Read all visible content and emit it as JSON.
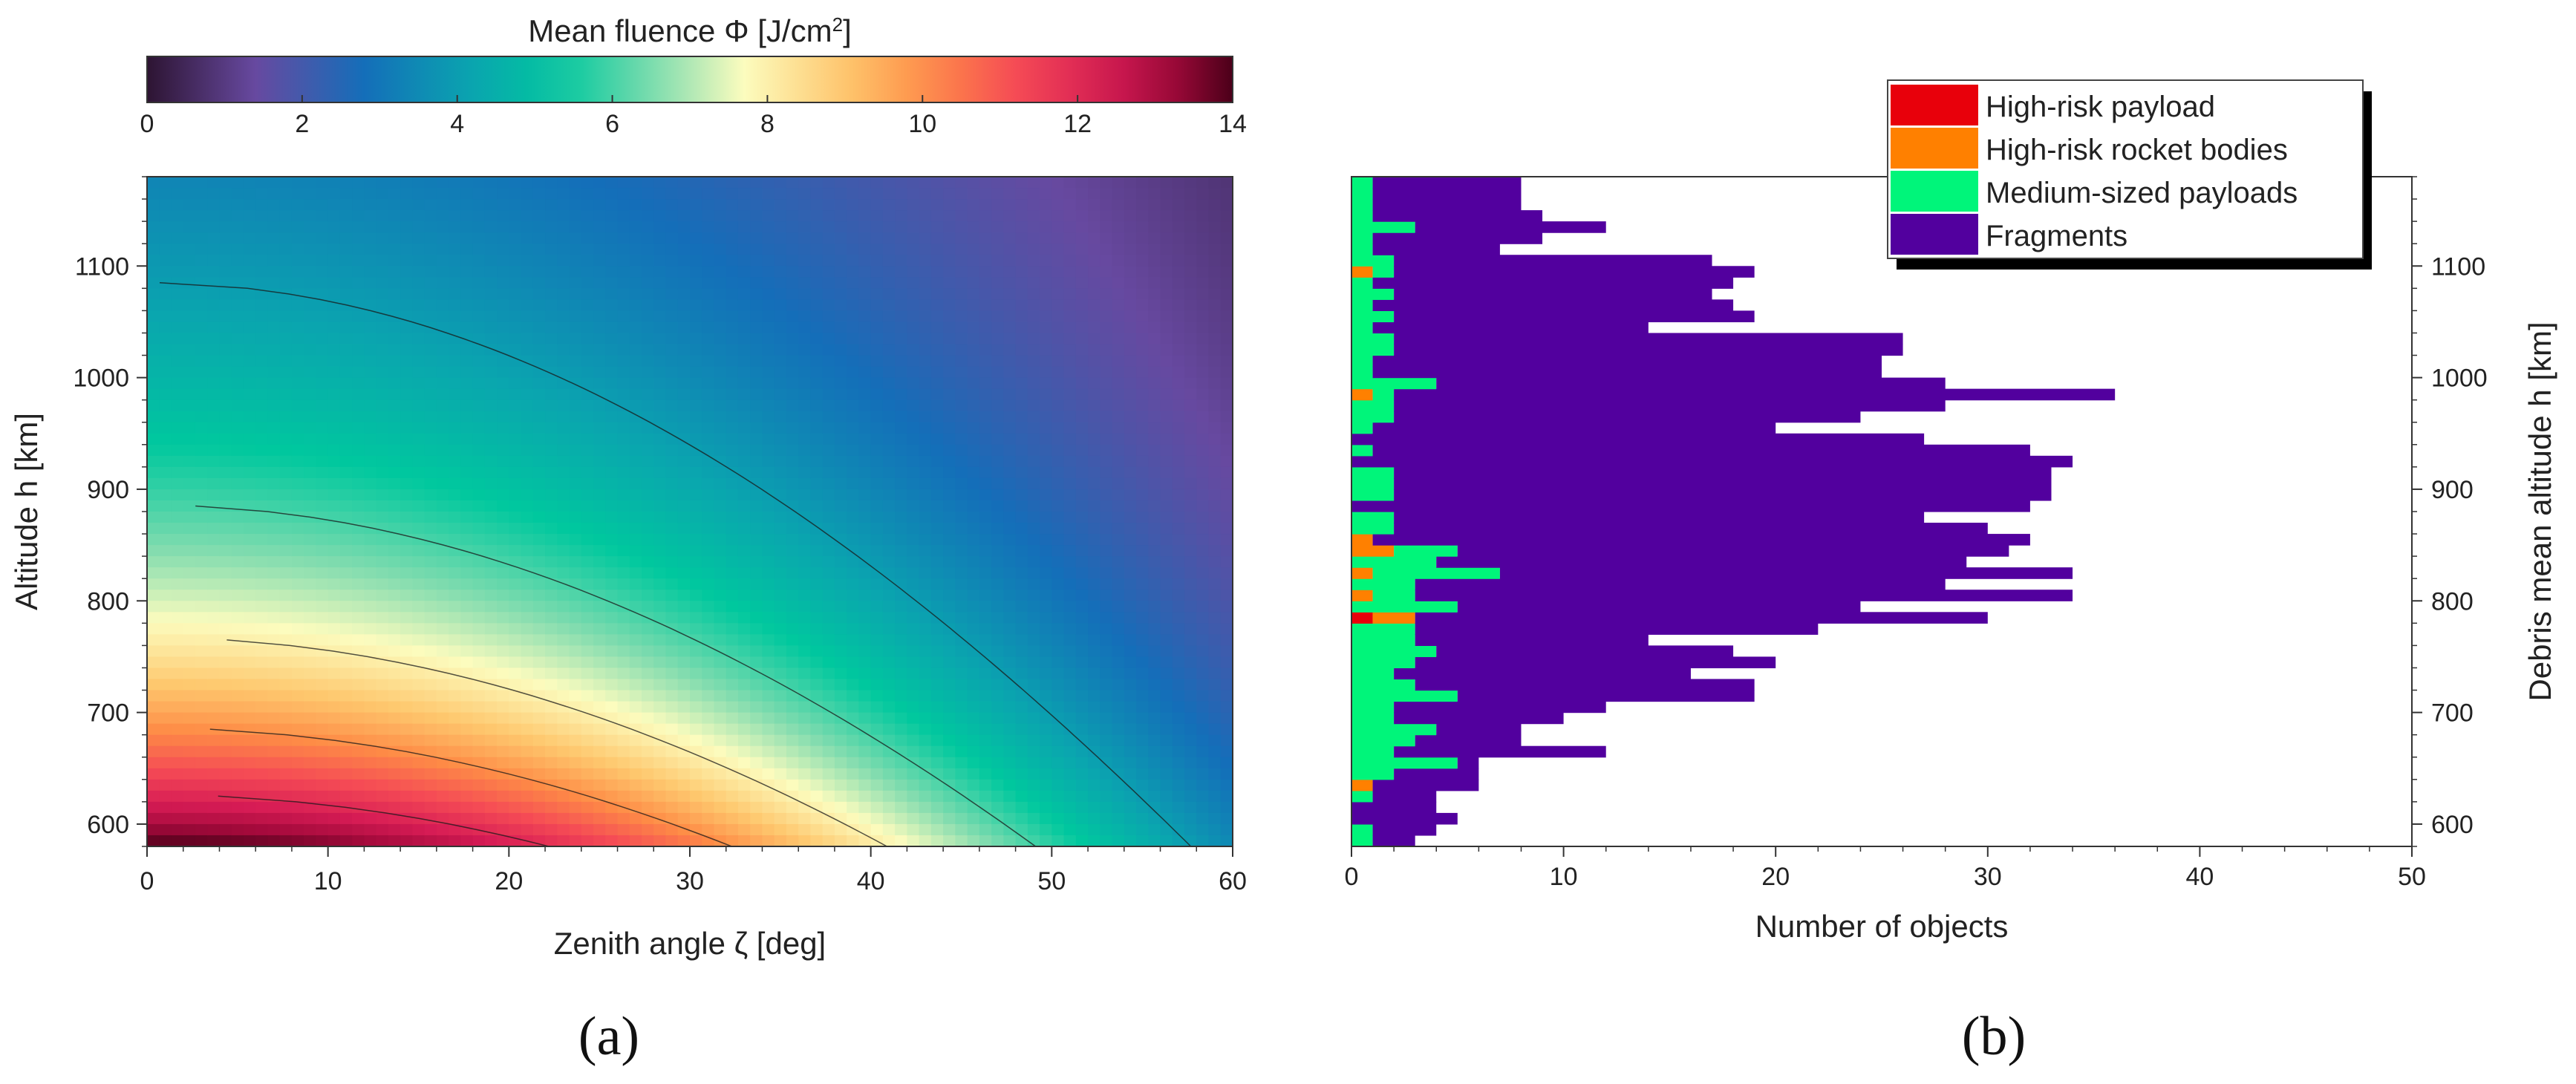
{
  "colors": {
    "high_risk_payload": "#e8000b",
    "high_risk_rocket_bodies": "#ff8000",
    "medium_sized_payloads": "#00f57a",
    "fragments": "#52009e"
  },
  "chart_data": [
    {
      "id": "a",
      "type": "heatmap",
      "panel_label": "(a)",
      "xlabel": "Zenith angle ζ [deg]",
      "ylabel": "Altitude h [km]",
      "xlim": [
        0,
        60
      ],
      "ylim": [
        580,
        1180
      ],
      "xticks": [
        "0",
        "10",
        "20",
        "30",
        "40",
        "50",
        "60"
      ],
      "yticks": [
        "600",
        "700",
        "800",
        "900",
        "1000",
        "1100"
      ],
      "grid": false,
      "colorbar": {
        "title_prefix": "Mean fluence Φ [J/cm",
        "title_sup": "2",
        "title_suffix": "]",
        "colormap": "Spectral_r",
        "range": [
          0,
          14
        ],
        "ticks": [
          "0",
          "2",
          "4",
          "6",
          "8",
          "10",
          "12",
          "14"
        ]
      },
      "contour_levels": [
        4,
        6,
        8,
        10,
        12,
        14
      ],
      "model": "fluence = 14 * (580/h)^2 * cos(zenith)^2"
    },
    {
      "id": "b",
      "type": "bar",
      "orientation": "horizontal",
      "stacked": true,
      "panel_label": "(b)",
      "xlabel": "Number of objects",
      "ylabel": "Debris mean altitude h [km]",
      "xlim": [
        0,
        50
      ],
      "ylim": [
        580,
        1180
      ],
      "xticks": [
        "0",
        "10",
        "20",
        "30",
        "40",
        "50"
      ],
      "yticks": [
        "600",
        "700",
        "800",
        "900",
        "1000",
        "1100"
      ],
      "bin_width_km": 10,
      "legend_position": "top-right",
      "legend": [
        "High-risk payload",
        "High-risk rocket bodies",
        "Medium-sized payloads",
        "Fragments"
      ],
      "bins_altitude_km": [
        580,
        590,
        600,
        610,
        620,
        630,
        640,
        650,
        660,
        670,
        680,
        690,
        700,
        710,
        720,
        730,
        740,
        750,
        760,
        770,
        780,
        790,
        800,
        810,
        820,
        830,
        840,
        850,
        860,
        870,
        880,
        890,
        900,
        910,
        920,
        930,
        940,
        950,
        960,
        970,
        980,
        990,
        1000,
        1010,
        1020,
        1030,
        1040,
        1050,
        1060,
        1070,
        1080,
        1090,
        1100,
        1110,
        1120,
        1130,
        1140,
        1150,
        1160,
        1170
      ],
      "series": [
        {
          "name": "High-risk payload",
          "values": [
            0,
            0,
            0,
            0,
            0,
            0,
            0,
            0,
            0,
            0,
            0,
            0,
            0,
            0,
            0,
            0,
            0,
            0,
            0,
            0,
            1,
            0,
            0,
            0,
            0,
            0,
            0,
            0,
            0,
            0,
            0,
            0,
            0,
            0,
            0,
            0,
            0,
            0,
            0,
            0,
            0,
            0,
            0,
            0,
            0,
            0,
            0,
            0,
            0,
            0,
            0,
            0,
            0,
            0,
            0,
            0,
            0,
            0,
            0,
            0
          ]
        },
        {
          "name": "High-risk rocket bodies",
          "values": [
            0,
            0,
            0,
            0,
            0,
            1,
            0,
            0,
            0,
            0,
            0,
            0,
            0,
            0,
            0,
            0,
            0,
            0,
            0,
            0,
            2,
            0,
            1,
            0,
            1,
            0,
            2,
            1,
            0,
            0,
            0,
            0,
            0,
            0,
            0,
            0,
            0,
            0,
            0,
            0,
            1,
            0,
            0,
            0,
            0,
            0,
            0,
            0,
            0,
            0,
            0,
            1,
            0,
            0,
            0,
            0,
            0,
            0,
            0,
            0
          ]
        },
        {
          "name": "Medium-sized payloads",
          "values": [
            1,
            1,
            0,
            0,
            1,
            0,
            2,
            5,
            2,
            3,
            4,
            2,
            2,
            5,
            3,
            2,
            3,
            4,
            3,
            3,
            0,
            5,
            2,
            3,
            6,
            4,
            3,
            0,
            2,
            2,
            0,
            2,
            2,
            2,
            0,
            1,
            0,
            1,
            2,
            2,
            1,
            4,
            1,
            1,
            2,
            2,
            1,
            2,
            1,
            2,
            1,
            1,
            2,
            1,
            1,
            3,
            1,
            1,
            1,
            1
          ]
        },
        {
          "name": "Fragments",
          "values": [
            2,
            3,
            5,
            4,
            3,
            5,
            4,
            1,
            10,
            5,
            4,
            8,
            10,
            14,
            16,
            14,
            17,
            14,
            11,
            19,
            27,
            19,
            31,
            25,
            27,
            25,
            26,
            31,
            28,
            25,
            32,
            31,
            31,
            31,
            34,
            31,
            27,
            19,
            22,
            26,
            34,
            24,
            24,
            24,
            24,
            24,
            13,
            17,
            17,
            15,
            17,
            17,
            15,
            6,
            8,
            9,
            8,
            7,
            7,
            7
          ]
        }
      ]
    }
  ]
}
